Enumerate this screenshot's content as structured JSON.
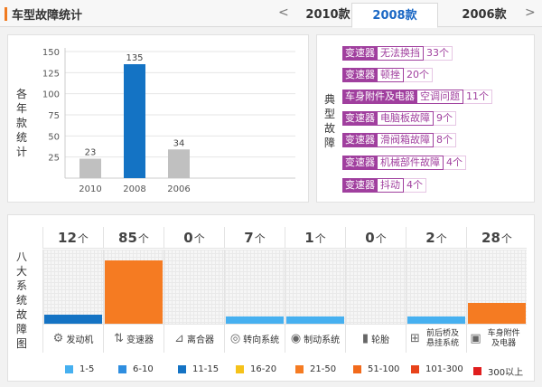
{
  "header": {
    "title": "车型故障统计",
    "prev_arrow": "<",
    "next_arrow": ">",
    "tabs": [
      {
        "label": "2010款",
        "active": false
      },
      {
        "label": "2008款",
        "active": true
      },
      {
        "label": "2006款",
        "active": false
      }
    ]
  },
  "year_chart": {
    "side_label": [
      "各",
      "年",
      "款",
      "统",
      "计"
    ],
    "chart_data": {
      "type": "bar",
      "categories": [
        "2010",
        "2008",
        "2006"
      ],
      "values": [
        23,
        135,
        34
      ],
      "colors": [
        "#c0c0c0",
        "#1473c4",
        "#c0c0c0"
      ],
      "yticks": [
        25,
        50,
        75,
        100,
        125,
        150
      ],
      "ylim": [
        0,
        150
      ]
    }
  },
  "typical_faults": {
    "side_label": [
      "典",
      "型",
      "故",
      "障"
    ],
    "rows": [
      {
        "category": "变速器",
        "description": "无法换挡",
        "count": "33个"
      },
      {
        "category": "变速器",
        "description": "顿挫",
        "count": "20个"
      },
      {
        "category": "车身附件及电器",
        "description": "空调问题",
        "count": "11个"
      },
      {
        "category": "变速器",
        "description": "电脑板故障",
        "count": "9个"
      },
      {
        "category": "变速器",
        "description": "滑阀箱故障",
        "count": "8个"
      },
      {
        "category": "变速器",
        "description": "机械部件故障",
        "count": "4个"
      },
      {
        "category": "变速器",
        "description": "抖动",
        "count": "4个"
      }
    ]
  },
  "systems": {
    "side_label": [
      "八",
      "大",
      "系",
      "统",
      "故",
      "障",
      "图"
    ],
    "unit": "个",
    "max_level": 100,
    "items": [
      {
        "count": "12",
        "level": 12,
        "color": "#1473c4",
        "name": "发动机",
        "icon": "engine-icon",
        "glyph": "⚙"
      },
      {
        "count": "85",
        "level": 85,
        "color": "#f57b22",
        "name": "变速器",
        "icon": "gear-shift-icon",
        "glyph": "⇅"
      },
      {
        "count": "0",
        "level": 0,
        "color": "#1473c4",
        "name": "离合器",
        "icon": "clutch-pedal-icon",
        "glyph": "⊿"
      },
      {
        "count": "7",
        "level": 7,
        "color": "#46b0f0",
        "name": "转向系统",
        "icon": "steering-wheel-icon",
        "glyph": "◎"
      },
      {
        "count": "1",
        "level": 1,
        "color": "#46b0f0",
        "name": "制动系统",
        "icon": "brake-disc-icon",
        "glyph": "◉"
      },
      {
        "count": "0",
        "level": 0,
        "color": "#46b0f0",
        "name": "轮胎",
        "icon": "tire-icon",
        "glyph": "▮"
      },
      {
        "count": "2",
        "level": 2,
        "color": "#46b0f0",
        "name": "前后桥及悬挂系统",
        "icon": "axle-icon",
        "glyph": "⊞"
      },
      {
        "count": "28",
        "level": 28,
        "color": "#f57b22",
        "name": "车身附件及电器",
        "icon": "battery-icon",
        "glyph": "▣"
      }
    ]
  },
  "legend": [
    {
      "label": "1-5",
      "color": "#46b0f0"
    },
    {
      "label": "6-10",
      "color": "#2e8ee0"
    },
    {
      "label": "11-15",
      "color": "#1473c4"
    },
    {
      "label": "16-20",
      "color": "#f5c21a"
    },
    {
      "label": "21-50",
      "color": "#f57b22"
    },
    {
      "label": "51-100",
      "color": "#f26a1b"
    },
    {
      "label": "101-300",
      "color": "#e8431a"
    },
    {
      "label": "300以上",
      "color": "#e01e1e"
    }
  ]
}
